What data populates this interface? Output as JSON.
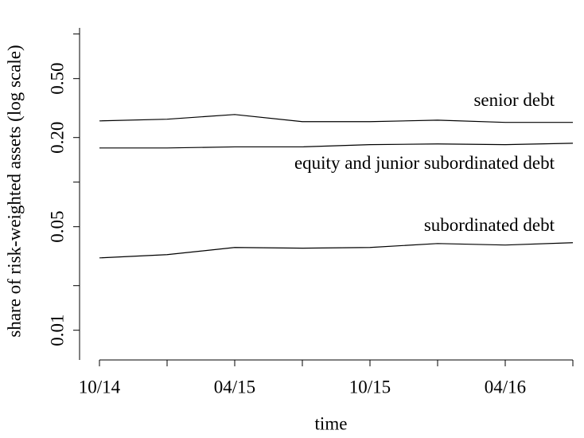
{
  "chart_data": {
    "type": "line",
    "x_label": "time",
    "y_label": "share of risk-weighted assets (log scale)",
    "categories": [
      "10/14",
      null,
      "04/15",
      null,
      "10/15",
      null,
      "04/16",
      null
    ],
    "series": [
      {
        "name": "senior debt",
        "color": "#000000",
        "values": [
          0.259,
          0.266,
          0.286,
          0.256,
          0.256,
          0.262,
          0.253,
          0.253
        ]
      },
      {
        "name": "equity and junior subordinated debt",
        "color": "#000000",
        "values": [
          0.17,
          0.17,
          0.173,
          0.173,
          0.179,
          0.181,
          0.179,
          0.183
        ]
      },
      {
        "name": "subordinated debt",
        "color": "#000000",
        "values": [
          0.0308,
          0.0324,
          0.0362,
          0.0358,
          0.0362,
          0.0385,
          0.0376,
          0.039
        ]
      }
    ],
    "log_y": true,
    "ylim": [
      0.0063,
      1.1
    ],
    "yticks": [
      0.01,
      0.05,
      {
        "value": 0.2,
        "label": "0.20"
      },
      {
        "value": 0.5,
        "label": "0.50"
      }
    ],
    "yminor_ticks": [
      0.02,
      0.1,
      1
    ],
    "grid": false
  }
}
